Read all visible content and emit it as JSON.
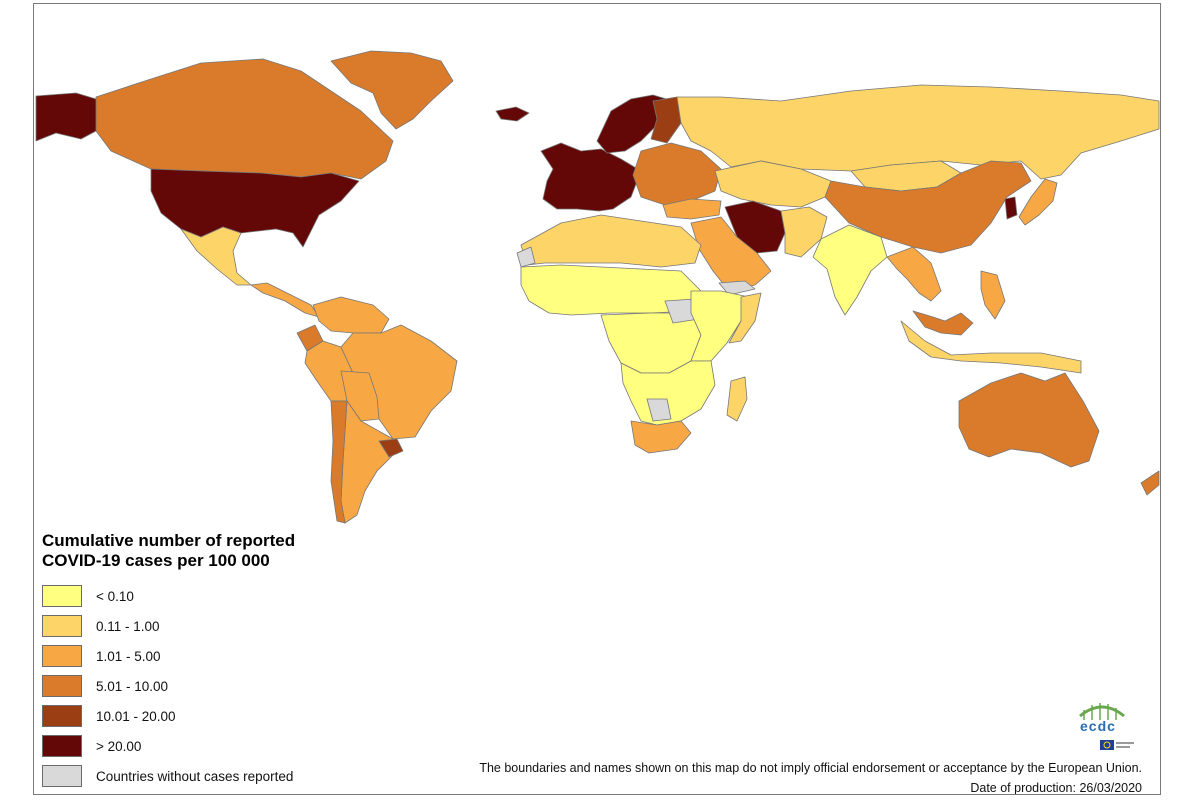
{
  "legend": {
    "title_line1": "Cumulative number of reported",
    "title_line2": "COVID-19 cases per 100 000",
    "classes": [
      {
        "label": "< 0.10",
        "color": "#ffff80"
      },
      {
        "label": "0.11 - 1.00",
        "color": "#fcd468"
      },
      {
        "label": "1.01 - 5.00",
        "color": "#f7a845"
      },
      {
        "label": "5.01 - 10.00",
        "color": "#d97b2a"
      },
      {
        "label": "10.01 - 20.00",
        "color": "#9c3e14"
      },
      {
        "label": "> 20.00",
        "color": "#630707"
      },
      {
        "label": "Countries without cases reported",
        "color": "#d9d9d9"
      }
    ]
  },
  "regions": [
    {
      "name": "Canada",
      "class": 3
    },
    {
      "name": "Greenland",
      "class": 3
    },
    {
      "name": "Alaska",
      "class": 5
    },
    {
      "name": "United States",
      "class": 5
    },
    {
      "name": "Mexico",
      "class": 1
    },
    {
      "name": "Central America",
      "class": 2
    },
    {
      "name": "Colombia / Venezuela",
      "class": 2
    },
    {
      "name": "Ecuador",
      "class": 3
    },
    {
      "name": "Peru",
      "class": 2
    },
    {
      "name": "Brazil",
      "class": 2
    },
    {
      "name": "Bolivia / Paraguay",
      "class": 2
    },
    {
      "name": "Argentina",
      "class": 2
    },
    {
      "name": "Chile",
      "class": 3
    },
    {
      "name": "Uruguay",
      "class": 4
    },
    {
      "name": "Iceland",
      "class": 5
    },
    {
      "name": "Western Europe",
      "class": 5
    },
    {
      "name": "Scandinavia",
      "class": 5
    },
    {
      "name": "Finland / Baltics",
      "class": 4
    },
    {
      "name": "Eastern Europe",
      "class": 3
    },
    {
      "name": "Russia",
      "class": 1
    },
    {
      "name": "Kazakhstan / Central Asia",
      "class": 1
    },
    {
      "name": "Mongolia",
      "class": 1
    },
    {
      "name": "China",
      "class": 3
    },
    {
      "name": "Korea",
      "class": 5
    },
    {
      "name": "Japan",
      "class": 2
    },
    {
      "name": "Iran",
      "class": 5
    },
    {
      "name": "Turkey",
      "class": 2
    },
    {
      "name": "Arabian Peninsula",
      "class": 2
    },
    {
      "name": "Yemen",
      "class": 6
    },
    {
      "name": "Afghanistan / Pakistan",
      "class": 1
    },
    {
      "name": "India",
      "class": 0
    },
    {
      "name": "Southeast Asia",
      "class": 2
    },
    {
      "name": "Malaysia",
      "class": 3
    },
    {
      "name": "Indonesia",
      "class": 1
    },
    {
      "name": "Philippines",
      "class": 2
    },
    {
      "name": "Australia",
      "class": 3
    },
    {
      "name": "New Zealand",
      "class": 3
    },
    {
      "name": "North Africa",
      "class": 1
    },
    {
      "name": "Western Sahara",
      "class": 6
    },
    {
      "name": "Sahel",
      "class": 0
    },
    {
      "name": "Central Africa",
      "class": 0
    },
    {
      "name": "South Sudan",
      "class": 6
    },
    {
      "name": "East Africa",
      "class": 0
    },
    {
      "name": "Somalia",
      "class": 1
    },
    {
      "name": "Southern Africa",
      "class": 0
    },
    {
      "name": "Botswana",
      "class": 6
    },
    {
      "name": "South Africa",
      "class": 2
    },
    {
      "name": "Madagascar",
      "class": 1
    }
  ],
  "disclaimer": "The boundaries and names shown on this map do not imply official endorsement or acceptance by the European Union.",
  "date_of_production": "Date of production: 26/03/2020",
  "logo_text": "ecdc"
}
